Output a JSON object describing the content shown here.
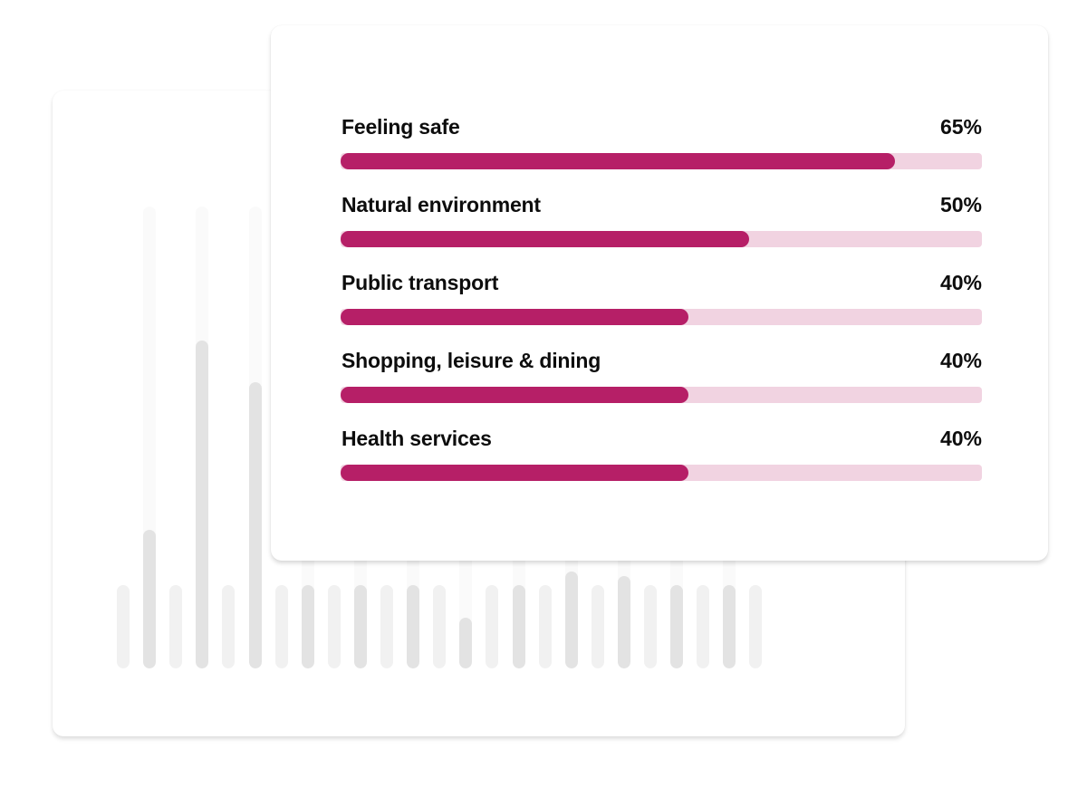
{
  "metrics": [
    {
      "label": "Feeling safe",
      "value_text": "65%",
      "fill_fraction": 0.865
    },
    {
      "label": "Natural environment",
      "value_text": "50%",
      "fill_fraction": 0.637
    },
    {
      "label": "Public transport",
      "value_text": "40%",
      "fill_fraction": 0.542
    },
    {
      "label": "Shopping, leisure & dining",
      "value_text": "40%",
      "fill_fraction": 0.542
    },
    {
      "label": "Health services",
      "value_text": "40%",
      "fill_fraction": 0.542
    }
  ],
  "background_chart": {
    "bar_levels": [
      0.18,
      0.3,
      0.18,
      0.71,
      0.18,
      0.62,
      0.18,
      0.18,
      0.18,
      0.18,
      0.18,
      0.18,
      0.18,
      0.11,
      0.18,
      0.18,
      0.18,
      0.21,
      0.18,
      0.2,
      0.18,
      0.18,
      0.18,
      0.18,
      0.18
    ],
    "bar_tones": [
      "light",
      "mid",
      "light",
      "mid",
      "light",
      "mid",
      "light",
      "mid",
      "light",
      "mid",
      "light",
      "mid",
      "light",
      "mid",
      "light",
      "mid",
      "light",
      "mid",
      "light",
      "mid",
      "light",
      "mid",
      "light",
      "mid",
      "light"
    ]
  },
  "colors": {
    "bar_fill": "#b61f67",
    "bar_track": "#f1d3e1",
    "background_bar_light": "#f1f1f1",
    "background_bar_mid": "#e3e3e3",
    "text": "#0d0d0d"
  }
}
